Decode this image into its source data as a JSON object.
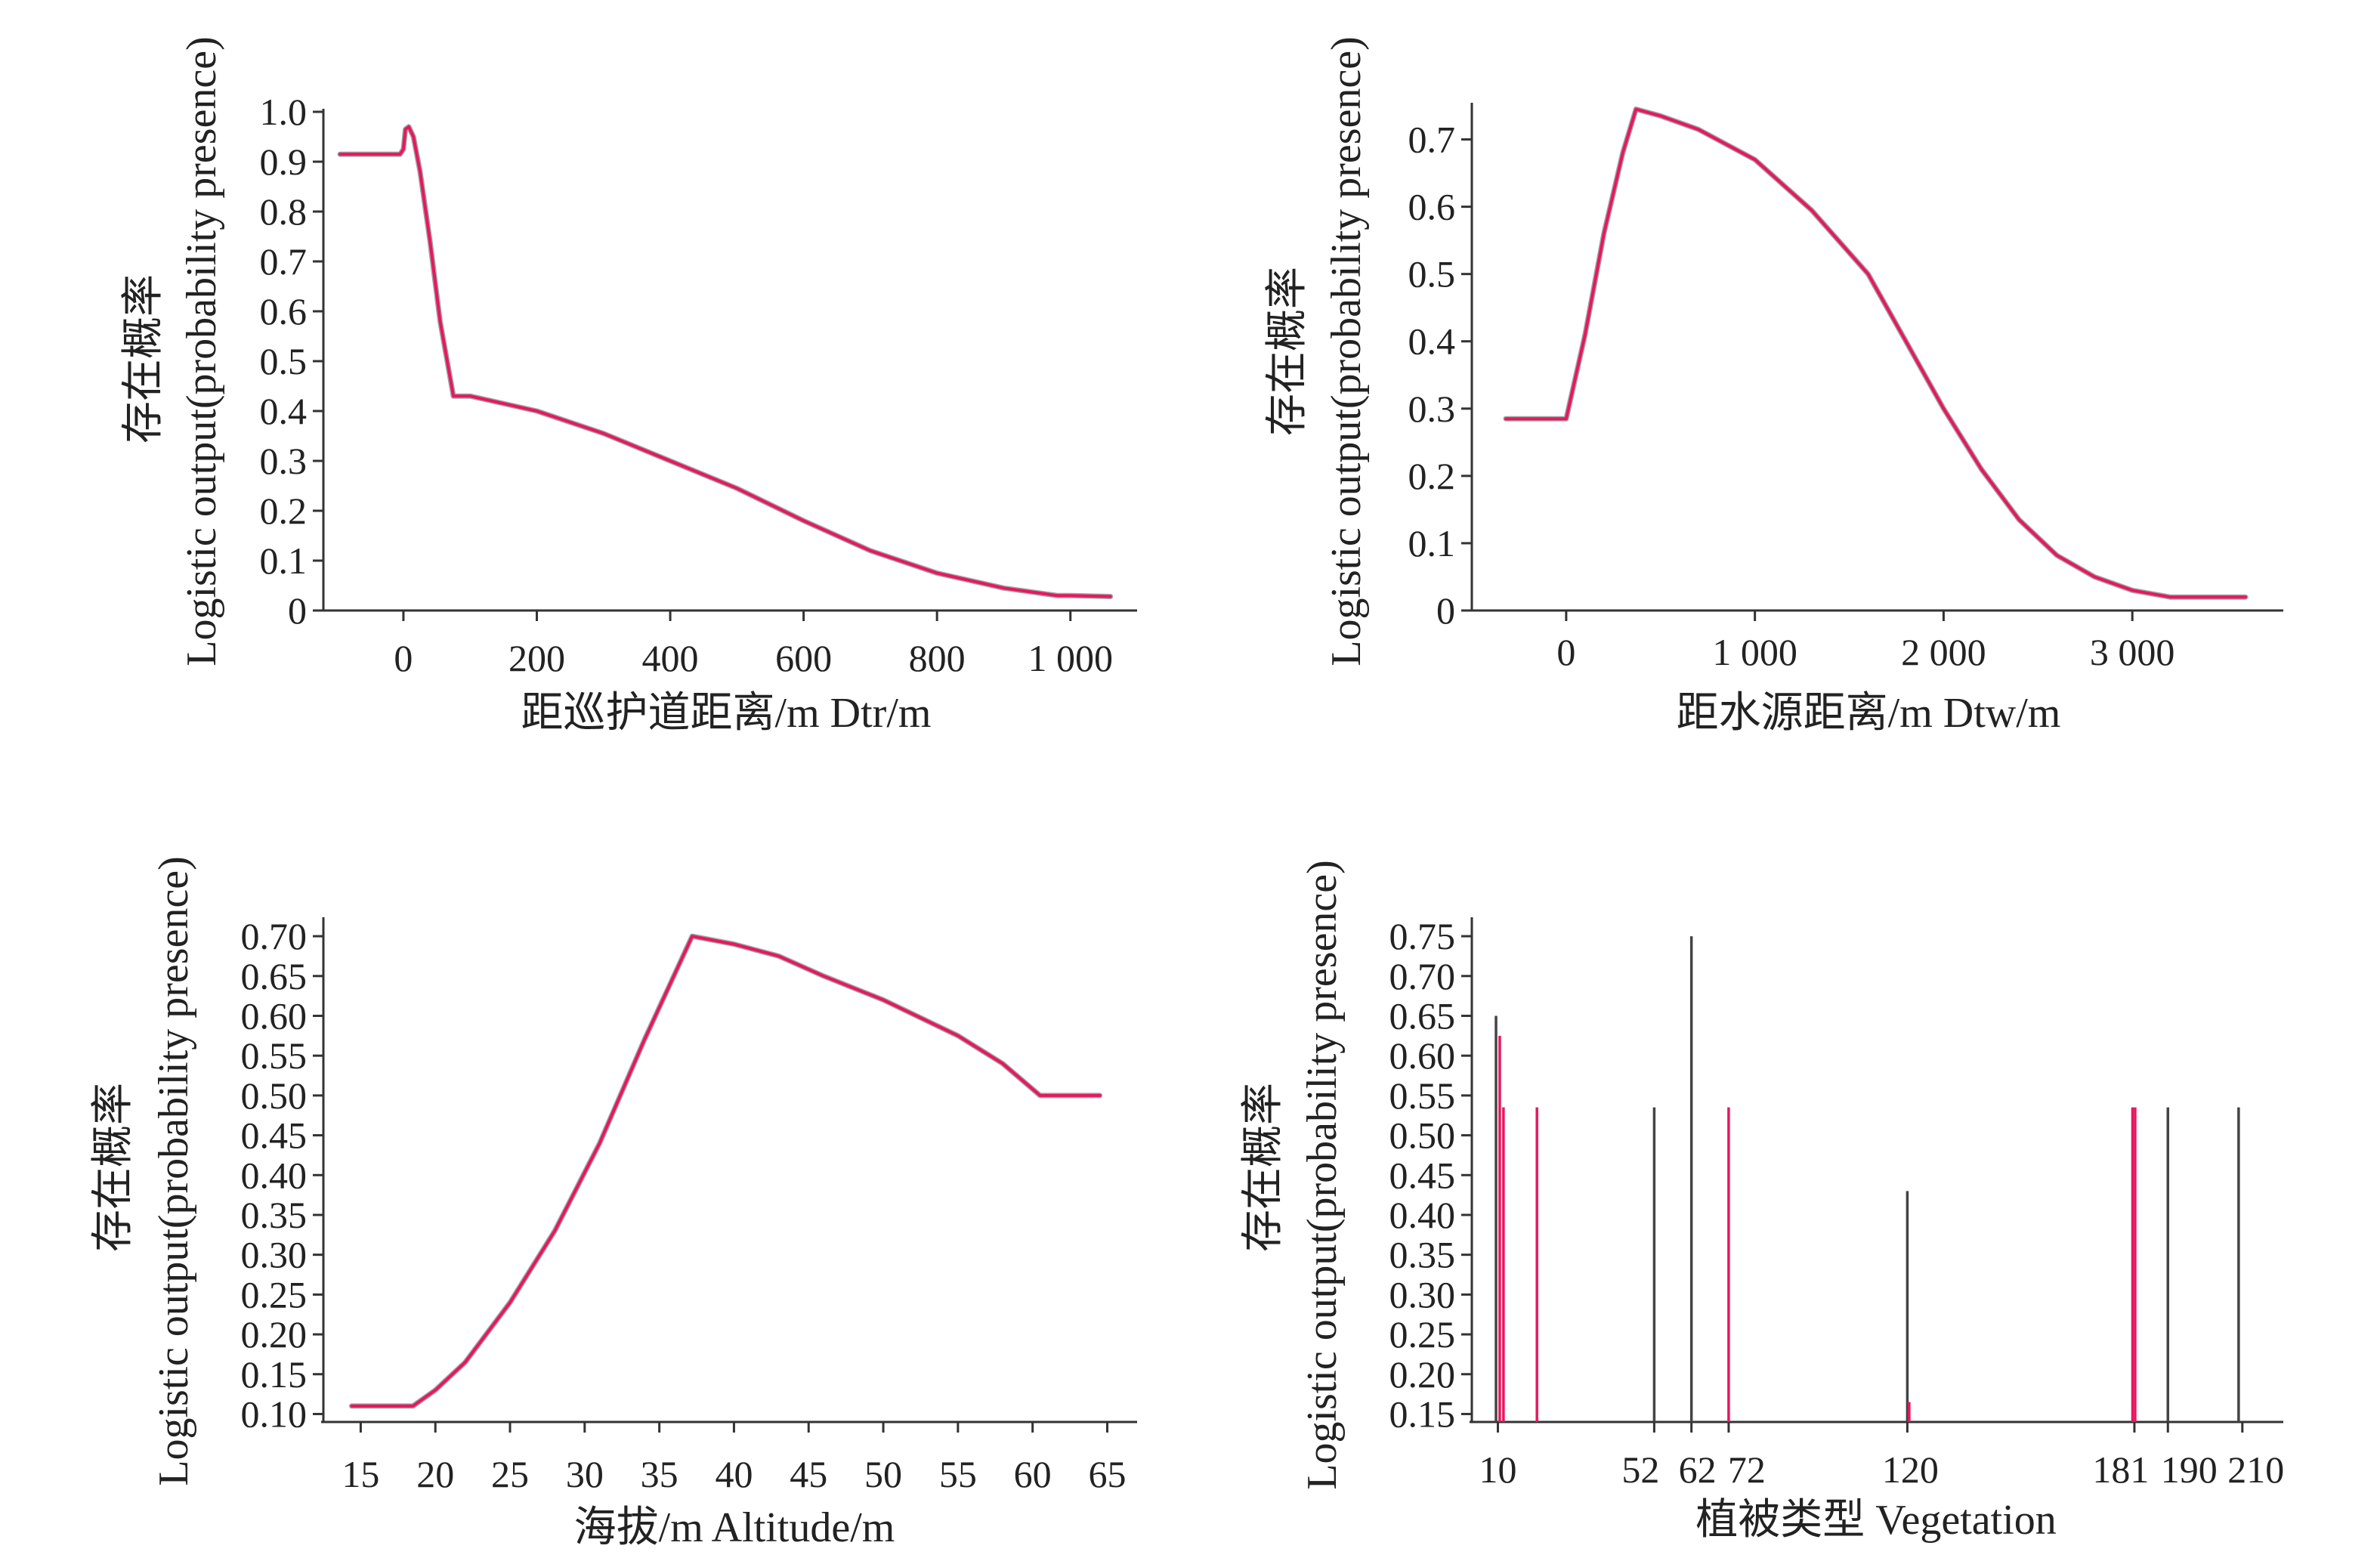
{
  "colors": {
    "line": "#e8175d",
    "shadow": "#555555",
    "axis": "#333333",
    "dark_bar": "#444444"
  },
  "chart_data": [
    {
      "id": "dtr",
      "type": "line",
      "xlabel": "距巡护道距离/m Dtr/m",
      "ylabel": "Logistic output(probability presence)",
      "ylabel_cn": "存在概率",
      "xlim": [
        -120,
        1100
      ],
      "ylim": [
        0,
        1.0
      ],
      "xticks": [
        0,
        200,
        400,
        600,
        800,
        1000
      ],
      "xtick_labels": [
        "0",
        "200",
        "400",
        "600",
        "800",
        "1 000"
      ],
      "yticks": [
        0,
        0.1,
        0.2,
        0.3,
        0.4,
        0.5,
        0.6,
        0.7,
        0.8,
        0.9,
        1.0
      ],
      "ytick_labels": [
        "0",
        "0.1",
        "0.2",
        "0.3",
        "0.4",
        "0.5",
        "0.6",
        "0.7",
        "0.8",
        "0.9",
        "1.0"
      ],
      "series": [
        {
          "x": [
            -95,
            -5,
            0,
            3,
            8,
            15,
            25,
            40,
            55,
            75,
            100,
            200,
            300,
            400,
            500,
            600,
            700,
            800,
            900,
            980,
            1000,
            1060
          ],
          "y": [
            0.915,
            0.915,
            0.925,
            0.965,
            0.97,
            0.95,
            0.88,
            0.74,
            0.58,
            0.43,
            0.43,
            0.4,
            0.355,
            0.3,
            0.245,
            0.18,
            0.12,
            0.075,
            0.045,
            0.03,
            0.03,
            0.028
          ]
        }
      ]
    },
    {
      "id": "dtw",
      "type": "line",
      "xlabel": "距水源距离/m Dtw/m",
      "ylabel": "Logistic output(probability presence)",
      "ylabel_cn": "存在概率",
      "xlim": [
        -500,
        3800
      ],
      "ylim": [
        0,
        0.75
      ],
      "xticks": [
        0,
        1000,
        2000,
        3000
      ],
      "xtick_labels": [
        "0",
        "1 000",
        "2 000",
        "3 000"
      ],
      "yticks": [
        0,
        0.1,
        0.2,
        0.3,
        0.4,
        0.5,
        0.6,
        0.7
      ],
      "ytick_labels": [
        "0",
        "0.1",
        "0.2",
        "0.3",
        "0.4",
        "0.5",
        "0.6",
        "0.7"
      ],
      "series": [
        {
          "x": [
            -320,
            0,
            100,
            200,
            300,
            370,
            500,
            700,
            1000,
            1300,
            1600,
            1800,
            2000,
            2200,
            2400,
            2600,
            2800,
            3000,
            3200,
            3600
          ],
          "y": [
            0.285,
            0.285,
            0.41,
            0.56,
            0.68,
            0.745,
            0.735,
            0.715,
            0.67,
            0.595,
            0.5,
            0.4,
            0.3,
            0.21,
            0.135,
            0.082,
            0.05,
            0.03,
            0.02,
            0.02
          ]
        }
      ]
    },
    {
      "id": "altitude",
      "type": "line",
      "xlabel": "海拔/m Altitude/m",
      "ylabel": "Logistic output(probability presence)",
      "ylabel_cn": "存在概率",
      "xlim": [
        12.5,
        67
      ],
      "ylim": [
        0.09,
        0.72
      ],
      "xticks": [
        15,
        20,
        25,
        30,
        35,
        40,
        45,
        50,
        55,
        60,
        65
      ],
      "xtick_labels": [
        "15",
        "20",
        "25",
        "30",
        "35",
        "40",
        "45",
        "50",
        "55",
        "60",
        "65"
      ],
      "yticks": [
        0.1,
        0.15,
        0.2,
        0.25,
        0.3,
        0.35,
        0.4,
        0.45,
        0.5,
        0.55,
        0.6,
        0.65,
        0.7
      ],
      "ytick_labels": [
        "0.10",
        "0.15",
        "0.20",
        "0.25",
        "0.30",
        "0.35",
        "0.40",
        "0.45",
        "0.50",
        "0.55",
        "0.60",
        "0.65",
        "0.70"
      ],
      "series": [
        {
          "x": [
            14.4,
            18.5,
            20,
            22,
            25,
            28,
            31,
            34,
            37.2,
            40,
            43,
            46,
            50,
            55,
            58,
            60.5,
            64.5
          ],
          "y": [
            0.11,
            0.11,
            0.13,
            0.165,
            0.24,
            0.33,
            0.44,
            0.57,
            0.7,
            0.69,
            0.675,
            0.65,
            0.62,
            0.575,
            0.54,
            0.5,
            0.5
          ]
        }
      ]
    },
    {
      "id": "vegetation",
      "type": "bar",
      "xlabel": "植被类型 Vegetation",
      "ylabel": "Logistic output(probability presence)",
      "ylabel_cn": "存在概率",
      "xlim": [
        3,
        221
      ],
      "ylim": [
        0.14,
        0.77
      ],
      "xtick_values": [
        10,
        52,
        62,
        72,
        120,
        181,
        190,
        210
      ],
      "xtick_labels": [
        "10",
        "52",
        "62",
        "72",
        "120",
        "181",
        "190",
        "210"
      ],
      "xtick_labels_visible": [
        "10",
        "5262 72",
        "120",
        "181190 210"
      ],
      "yticks": [
        0.15,
        0.2,
        0.25,
        0.3,
        0.35,
        0.4,
        0.45,
        0.5,
        0.55,
        0.6,
        0.65,
        0.7,
        0.75
      ],
      "ytick_labels": [
        "0.15",
        "0.20",
        "0.25",
        "0.30",
        "0.35",
        "0.40",
        "0.45",
        "0.50",
        "0.55",
        "0.60",
        "0.65",
        "0.70",
        "0.75"
      ],
      "bars": [
        {
          "x": 9.5,
          "value": 0.65,
          "color": "dark"
        },
        {
          "x": 10.5,
          "value": 0.625,
          "color": "red"
        },
        {
          "x": 11.5,
          "value": 0.535,
          "color": "red"
        },
        {
          "x": 20.5,
          "value": 0.535,
          "color": "red"
        },
        {
          "x": 52,
          "value": 0.535,
          "color": "dark"
        },
        {
          "x": 62,
          "value": 0.75,
          "color": "dark"
        },
        {
          "x": 72,
          "value": 0.535,
          "color": "red"
        },
        {
          "x": 120,
          "value": 0.43,
          "color": "dark"
        },
        {
          "x": 120.5,
          "value": 0.165,
          "color": "red"
        },
        {
          "x": 180.5,
          "value": 0.535,
          "color": "red"
        },
        {
          "x": 181.2,
          "value": 0.535,
          "color": "red"
        },
        {
          "x": 190,
          "value": 0.535,
          "color": "dark"
        },
        {
          "x": 209,
          "value": 0.535,
          "color": "dark"
        }
      ]
    }
  ]
}
